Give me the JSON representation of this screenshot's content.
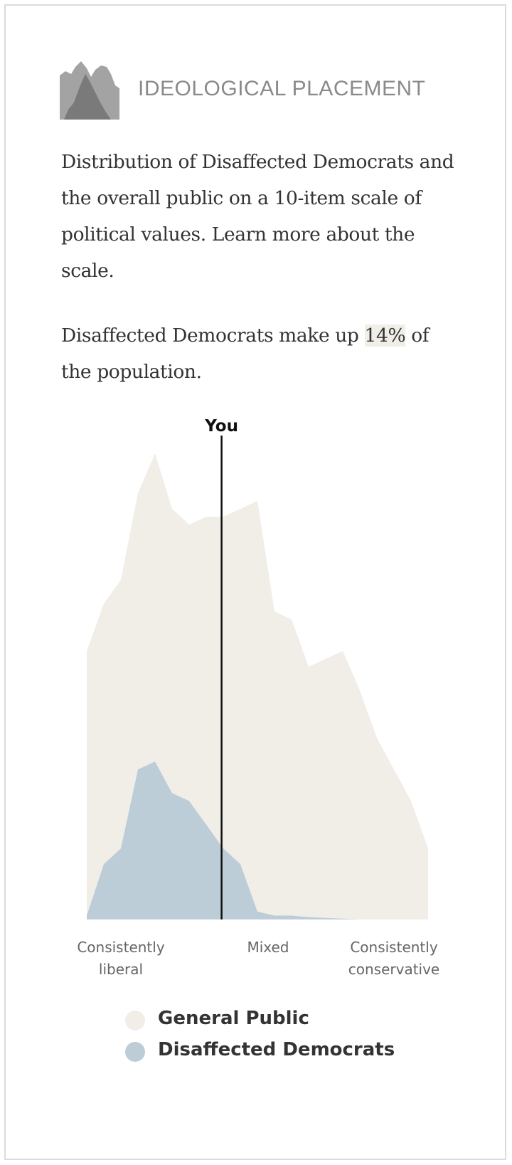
{
  "header": {
    "title": "IDEOLOGICAL PLACEMENT",
    "icon": "distribution-icon"
  },
  "description": "Distribution of Disaffected Democrats and the overall public on a 10-item scale of political values. Learn more about the scale.",
  "population": {
    "prefix": "Disaffected Democrats make up ",
    "value": "14%",
    "suffix": " of the population."
  },
  "chart_data": {
    "type": "area",
    "x": [
      -10,
      -9,
      -8,
      -7,
      -6,
      -5,
      -4,
      -3,
      -2,
      -1,
      0,
      1,
      2,
      3,
      4,
      5,
      6,
      7,
      8,
      9,
      10
    ],
    "xlim": [
      -10,
      10
    ],
    "ylim": [
      0,
      6.2
    ],
    "tick_labels": [
      {
        "x": -8,
        "text": [
          "Consistently",
          "liberal"
        ]
      },
      {
        "x": 0,
        "text": [
          "Mixed"
        ]
      },
      {
        "x": 8,
        "text": [
          "Consistently",
          "conservative"
        ]
      }
    ],
    "series": [
      {
        "name": "General Public",
        "color": "#f1eee8",
        "values": [
          3.4,
          4.0,
          4.3,
          5.4,
          5.9,
          5.2,
          5.0,
          5.1,
          5.1,
          5.2,
          5.3,
          3.9,
          3.8,
          3.2,
          3.3,
          3.4,
          2.9,
          2.3,
          1.9,
          1.5,
          0.9
        ]
      },
      {
        "name": "Disaffected Democrats",
        "color": "#bccdd8",
        "values": [
          0.05,
          0.7,
          0.9,
          1.9,
          2.0,
          1.6,
          1.5,
          1.2,
          0.9,
          0.7,
          0.1,
          0.05,
          0.05,
          0.03,
          0.02,
          0.01,
          0.0,
          0.0,
          0.0,
          0.0,
          0.0
        ]
      }
    ],
    "marker": {
      "label": "You",
      "x": -2.1
    },
    "legend": "bottom"
  }
}
